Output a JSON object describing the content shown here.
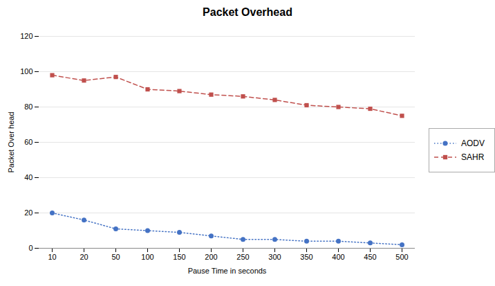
{
  "chart_data": {
    "type": "line",
    "title": "Packet Overhead",
    "xlabel": "Pause Time in seconds",
    "ylabel": "Packet Over head",
    "categories": [
      "10",
      "20",
      "50",
      "100",
      "150",
      "200",
      "250",
      "300",
      "350",
      "400",
      "450",
      "500"
    ],
    "series": [
      {
        "name": "AODV",
        "color": "#4472C4",
        "marker": "circle",
        "line_style": "dotted",
        "values": [
          20,
          16,
          11,
          10,
          9,
          7,
          5,
          5,
          4,
          4,
          3,
          2
        ]
      },
      {
        "name": "SAHR",
        "color": "#C0504D",
        "marker": "square",
        "line_style": "dashed",
        "values": [
          98,
          95,
          97,
          90,
          89,
          87,
          86,
          84,
          81,
          80,
          79,
          75
        ]
      }
    ],
    "ylim": [
      0,
      120
    ],
    "yticks": [
      0,
      20,
      40,
      60,
      80,
      100,
      120
    ],
    "grid": true,
    "legend": "right"
  }
}
